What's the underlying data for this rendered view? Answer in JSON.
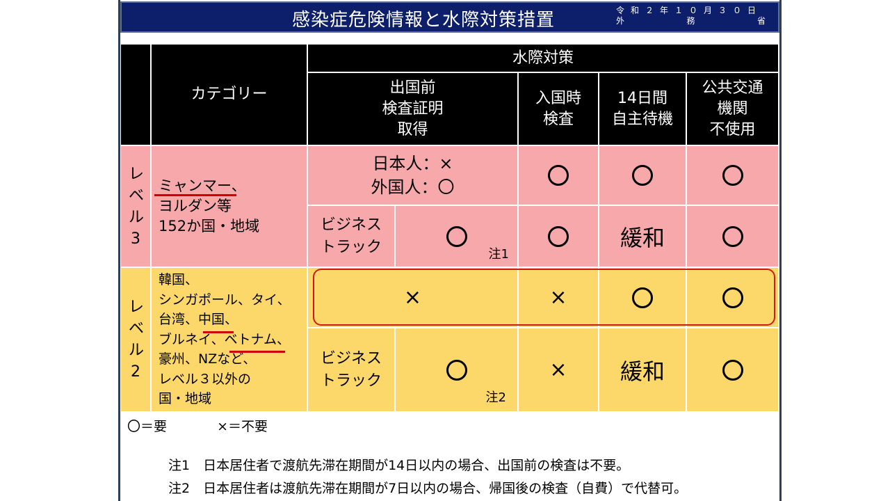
{
  "title": "感染症危険情報と水際対策措置",
  "date": "令和２年１０月３０日",
  "issuer": [
    "外",
    "務",
    "省"
  ],
  "header": {
    "category": "カテゴリー",
    "measures": "水際対策",
    "pre_departure": [
      "出国前",
      "検査証明",
      "取得"
    ],
    "arrival_test": [
      "入国時",
      "検査"
    ],
    "quarantine": [
      "14日間",
      "自主待機"
    ],
    "public_transport": [
      "公共交通",
      "機関",
      "不使用"
    ]
  },
  "level3": {
    "label": [
      "レ",
      "ベ",
      "ル",
      "3"
    ],
    "countries": [
      "ミャンマー、",
      "ヨルダン等",
      "152か国・地域"
    ],
    "row1": {
      "pre_departure": [
        "日本人：×",
        "外国人：〇"
      ],
      "arrival": "circle",
      "quarantine": "circle",
      "transport": "circle"
    },
    "row2": {
      "business": [
        "ビジネス",
        "トラック"
      ],
      "pre_departure": "circle",
      "note": "注1",
      "arrival": "circle",
      "quarantine": "緩和",
      "transport": "circle"
    }
  },
  "level2": {
    "label": [
      "レ",
      "ベ",
      "ル",
      "2"
    ],
    "countries": [
      "韓国、",
      "シンガポール、タイ、",
      "台湾、中国、",
      "ブルネイ、ベトナム、",
      "豪州、NZなど、",
      "レベル３以外の",
      "国・地域"
    ],
    "row1": {
      "pre_departure": "×",
      "arrival": "×",
      "quarantine": "circle",
      "transport": "circle"
    },
    "row2": {
      "business": [
        "ビジネス",
        "トラック"
      ],
      "pre_departure": "circle",
      "note": "注2",
      "arrival": "×",
      "quarantine": "緩和",
      "transport": "circle"
    }
  },
  "legend": {
    "required": "〇＝要",
    "not_required": "×＝不要"
  },
  "notes": [
    "注1　日本居住者で渡航先滞在期間が14日以内の場合、出国前の検査は不要。",
    "注2　日本居住者は渡航先滞在期間が7日以内の場合、帰国後の検査（自費）で代替可。"
  ],
  "colors": {
    "title_bg": "#0d1f6b",
    "header_bg": "#000000",
    "level3_bg": "#f7a8aa",
    "level2_bg": "#fcd76a",
    "highlight": "#d01818"
  }
}
